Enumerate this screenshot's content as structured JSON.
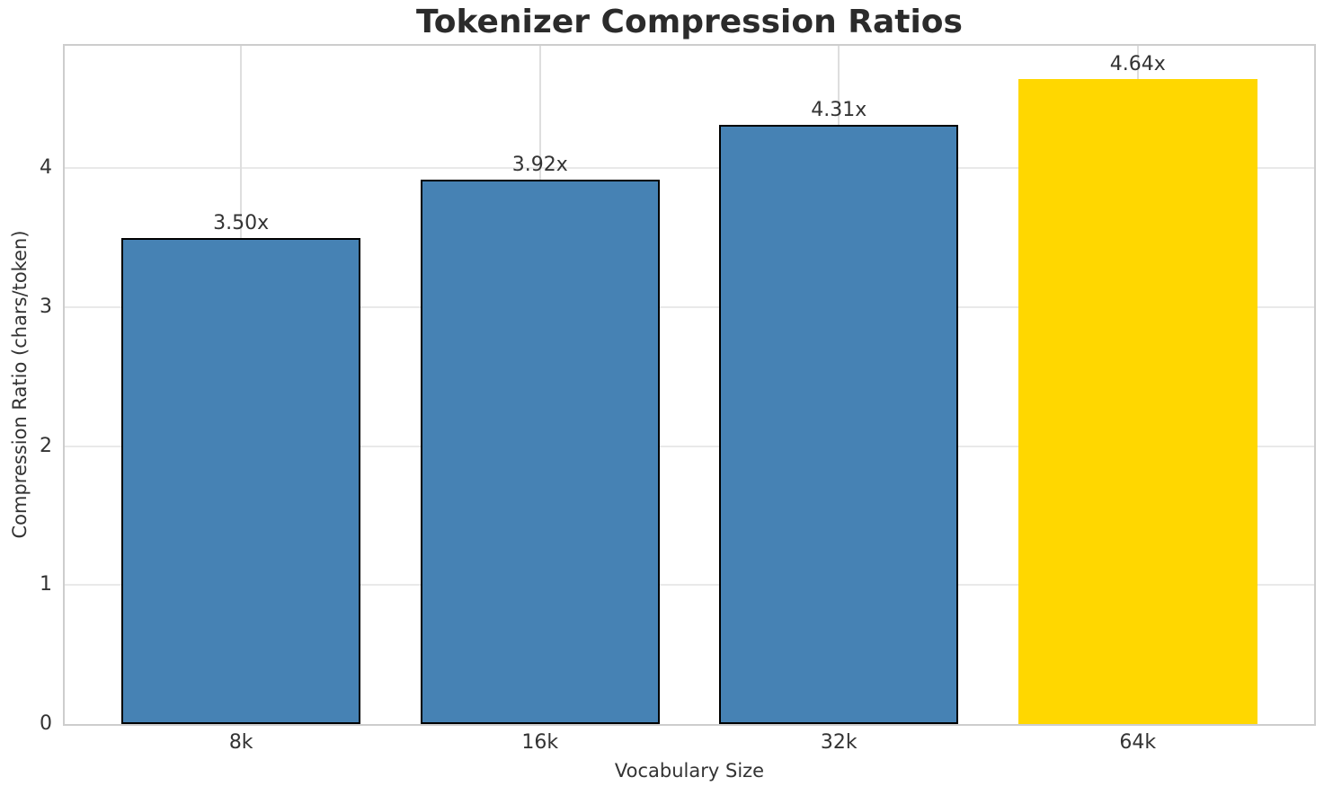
{
  "chart_data": {
    "type": "bar",
    "title": "Tokenizer Compression Ratios",
    "xlabel": "Vocabulary Size",
    "ylabel": "Compression Ratio (chars/token)",
    "categories": [
      "8k",
      "16k",
      "32k",
      "64k"
    ],
    "values": [
      3.5,
      3.92,
      4.31,
      4.64
    ],
    "bar_labels": [
      "3.50x",
      "3.92x",
      "4.31x",
      "4.64x"
    ],
    "bar_colors": [
      "#4682B4",
      "#4682B4",
      "#4682B4",
      "#FFD700"
    ],
    "bar_edge_colors": [
      "#000000",
      "#000000",
      "#000000",
      "none"
    ],
    "ytick_labels": [
      "0",
      "1",
      "2",
      "3",
      "4"
    ],
    "ytick_values": [
      0,
      1,
      2,
      3,
      4
    ],
    "ylim": [
      0,
      4.88
    ],
    "grid": true,
    "legend_position": "none",
    "colors": {
      "default_bar": "#4682B4",
      "highlight_bar": "#FFD700",
      "bar_edge": "#000000",
      "grid_h": "#e9e9e9",
      "grid_v": "#dedede",
      "spine": "#cdcdcd",
      "text": "#333333",
      "title_text": "#2b2b2b",
      "background": "#ffffff"
    }
  }
}
